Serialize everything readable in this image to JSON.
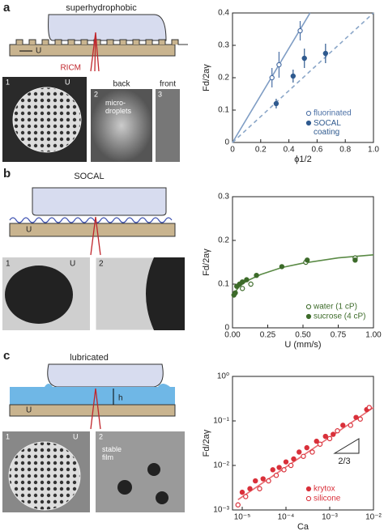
{
  "panels": [
    "a",
    "b",
    "c"
  ],
  "left": {
    "a": {
      "title": "superhydrophobic",
      "ricm": "RICM",
      "u": "U",
      "img1": "1",
      "img2": "2",
      "img3": "3",
      "back": "back",
      "front": "front",
      "droplets": "micro-\ndroplets"
    },
    "b": {
      "title": "SOCAL",
      "u": "U",
      "img1": "1",
      "img2": "2"
    },
    "c": {
      "title": "lubricated",
      "h": "h",
      "u": "U",
      "img1": "1",
      "img2": "2",
      "film": "stable\nfilm"
    }
  },
  "chart_data": [
    {
      "type": "scatter",
      "xlabel": "ϕ1/2",
      "ylabel": "Fd/2aγ",
      "xlim": [
        0,
        1
      ],
      "ylim": [
        0,
        0.4
      ],
      "xticks": [
        0,
        0.2,
        0.4,
        0.6,
        0.8,
        {
          "value": 1,
          "label": "1.0"
        }
      ],
      "yticks": [
        0,
        0.1,
        0.2,
        0.3,
        0.4
      ],
      "series": [
        {
          "name": "fluorinated",
          "color": "#4a6fa5",
          "marker": "open",
          "x": [
            0.28,
            0.33,
            0.48
          ],
          "values": [
            0.2,
            0.24,
            0.345
          ],
          "errors": [
            0.03,
            0.04,
            0.03
          ]
        },
        {
          "name": "SOCAL\ncoating",
          "color": "#2f5a8f",
          "marker": "filled",
          "x": [
            0.31,
            0.43,
            0.51,
            0.66
          ],
          "values": [
            0.12,
            0.205,
            0.26,
            0.275
          ],
          "errors": [
            0.015,
            0.02,
            0.03,
            0.03
          ]
        }
      ],
      "fits": [
        {
          "color": "#7f9dc4",
          "dash": false,
          "x": [
            0,
            0.55
          ],
          "values": [
            0,
            0.4
          ]
        },
        {
          "color": "#8aa6c8",
          "dash": true,
          "x": [
            0,
            1
          ],
          "values": [
            0,
            0.4
          ]
        }
      ],
      "legend": "lower right"
    },
    {
      "type": "scatter",
      "xlabel": "U (mm/s)",
      "ylabel": "Fd/2aγ",
      "xlim": [
        0,
        1
      ],
      "ylim": [
        0,
        0.3
      ],
      "xticks": [
        {
          "value": 0,
          "label": "0.00"
        },
        0.25,
        {
          "value": 0.5,
          "label": "0.50"
        },
        0.75,
        {
          "value": 1,
          "label": "1.00"
        }
      ],
      "yticks": [
        0,
        0.1,
        0.2,
        0.3
      ],
      "series": [
        {
          "name": "water (1 cP)",
          "color": "#3d6b2a",
          "marker": "open",
          "x": [
            0.07,
            0.13,
            0.52,
            0.87
          ],
          "values": [
            0.09,
            0.1,
            0.15,
            0.16
          ]
        },
        {
          "name": "sucrose (4 cP)",
          "color": "#3d6b2a",
          "marker": "filled",
          "x": [
            0.01,
            0.02,
            0.03,
            0.05,
            0.07,
            0.1,
            0.17,
            0.35,
            0.53,
            0.87
          ],
          "values": [
            0.075,
            0.08,
            0.095,
            0.1,
            0.105,
            0.11,
            0.12,
            0.14,
            0.155,
            0.155
          ]
        }
      ],
      "fits": [
        {
          "color": "#5a8a45",
          "dash": false,
          "x": [
            0,
            0.02,
            0.05,
            0.1,
            0.2,
            0.35,
            0.5,
            0.75,
            1
          ],
          "values": [
            0.07,
            0.083,
            0.095,
            0.107,
            0.122,
            0.138,
            0.148,
            0.16,
            0.167
          ]
        }
      ],
      "legend": "lower right"
    },
    {
      "type": "scatter",
      "xlabel": "Ca",
      "ylabel": "Fd/2aγ",
      "log_x": true,
      "log_y": true,
      "xlim": [
        6e-06,
        0.01
      ],
      "ylim": [
        0.001,
        1
      ],
      "xticks": [
        {
          "value": 1e-05,
          "label": "10⁻⁵"
        },
        {
          "value": 0.0001,
          "label": "10⁻⁴"
        },
        {
          "value": 0.001,
          "label": "10⁻³"
        },
        {
          "value": 0.01,
          "label": "10⁻²"
        }
      ],
      "yticks": [
        {
          "value": 0.001,
          "label": "10⁻³"
        },
        {
          "value": 0.01,
          "label": "10⁻²"
        },
        {
          "value": 0.1,
          "label": "10⁻¹"
        },
        {
          "value": 1,
          "label": "10⁰"
        }
      ],
      "annotation": "2/3",
      "series": [
        {
          "name": "krytox",
          "color": "#d9303a",
          "marker": "filled",
          "x": [
            1e-05,
            1.5e-05,
            2e-05,
            3e-05,
            5e-05,
            7e-05,
            0.0001,
            0.00015,
            0.0002,
            0.0003,
            0.0005,
            0.0008,
            0.0012,
            0.002,
            0.004,
            0.007
          ],
          "values": [
            0.0025,
            0.003,
            0.0045,
            0.005,
            0.008,
            0.009,
            0.012,
            0.014,
            0.02,
            0.025,
            0.035,
            0.045,
            0.05,
            0.08,
            0.12,
            0.18
          ]
        },
        {
          "name": "silicone",
          "color": "#d9303a",
          "marker": "open",
          "x": [
            8e-06,
            1.2e-05,
            2.5e-05,
            4e-05,
            6e-05,
            9e-05,
            0.00013,
            0.00025,
            0.0004,
            0.0006,
            0.001,
            0.0015,
            0.003,
            0.005,
            0.008
          ],
          "values": [
            0.0013,
            0.002,
            0.003,
            0.0045,
            0.006,
            0.008,
            0.01,
            0.016,
            0.02,
            0.03,
            0.04,
            0.06,
            0.08,
            0.11,
            0.2
          ]
        }
      ],
      "fits": [
        {
          "color": "#e86a70",
          "dash": false,
          "x": [
            8e-06,
            0.01
          ],
          "values": [
            0.0017,
            0.2
          ]
        }
      ],
      "legend": "lower right"
    }
  ]
}
